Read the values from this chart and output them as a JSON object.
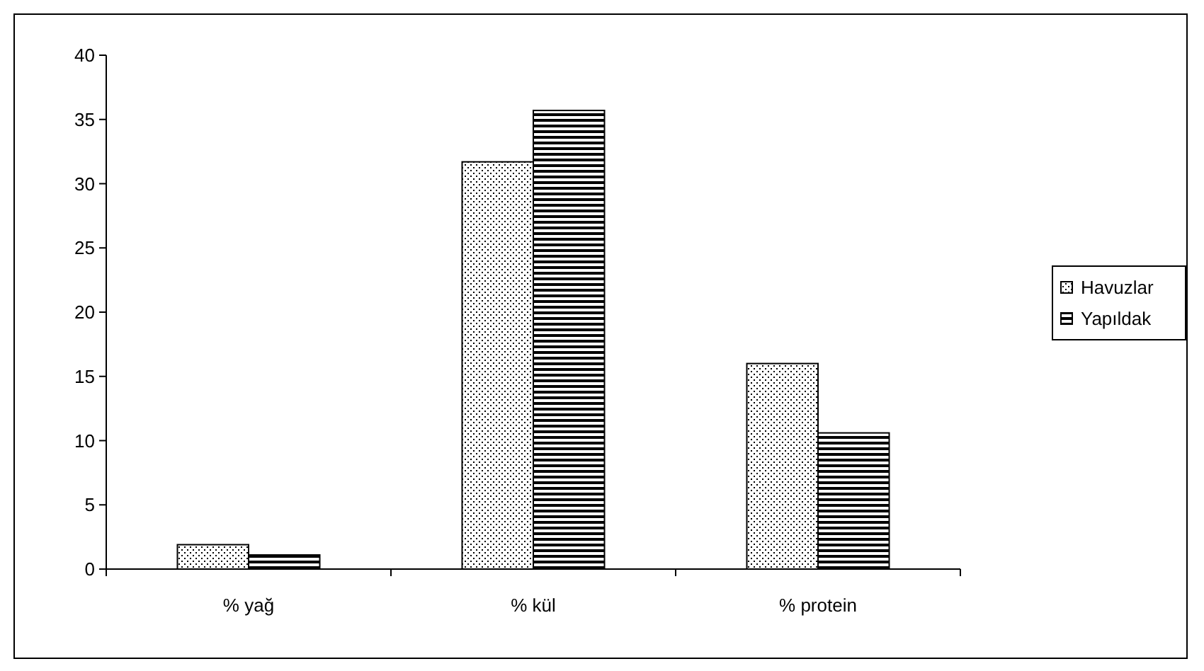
{
  "chart_data": {
    "type": "bar",
    "categories": [
      "% yağ",
      "% kül",
      "% protein"
    ],
    "series": [
      {
        "name": "Havuzlar",
        "color": "#000000",
        "values": [
          1.9,
          31.7,
          16.0
        ]
      },
      {
        "name": "Yapıldak",
        "color": "#000000",
        "values": [
          1.1,
          35.7,
          10.6
        ]
      }
    ],
    "ylim": [
      0,
      40
    ],
    "yticks": [
      0,
      5,
      10,
      15,
      20,
      25,
      30,
      35,
      40
    ],
    "grid": false,
    "legend": "right"
  }
}
